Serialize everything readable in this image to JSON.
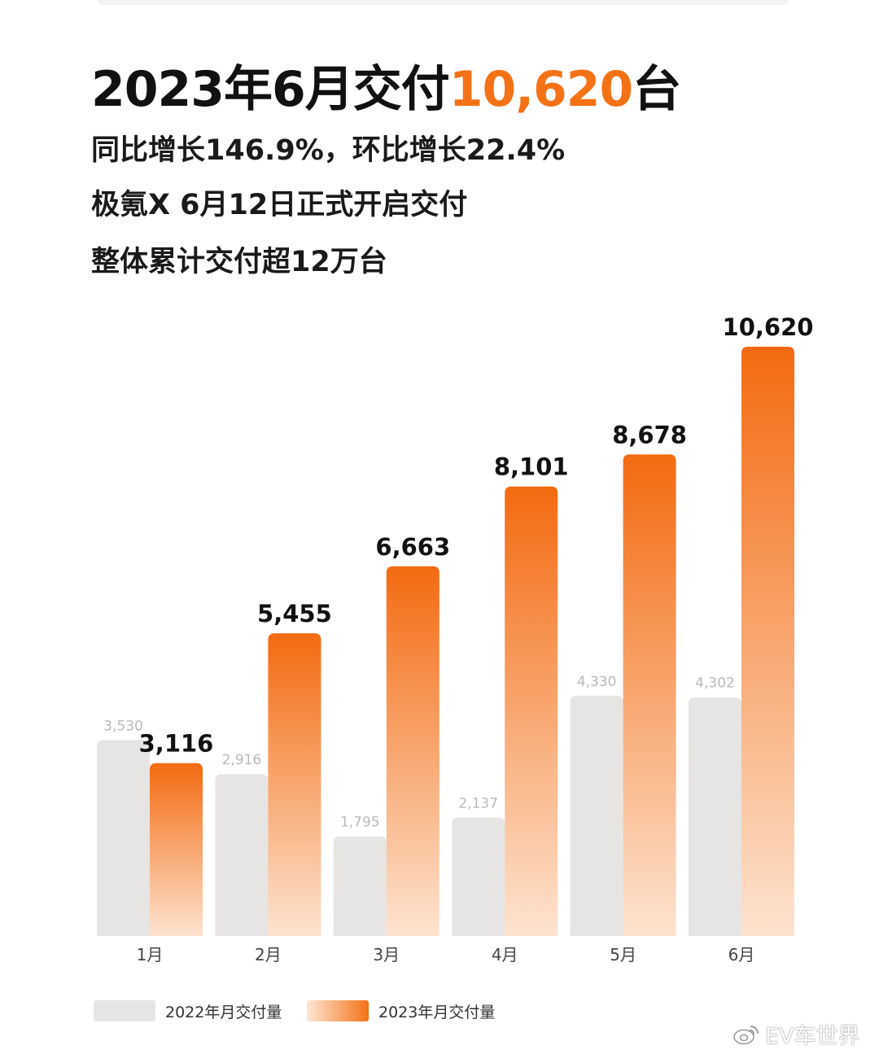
{
  "headline": {
    "prefix": "2023年6月交付",
    "highlight": "10,620",
    "suffix": "台"
  },
  "subtitles": [
    "同比增长146.9%，环比增长22.4%",
    "极氪X 6月12日正式开启交付",
    "整体累计交付超12万台"
  ],
  "colors": {
    "accent": "#f47216",
    "bar_2022": "#e6e5e3",
    "bar_2023_top": "#f36a10",
    "bar_2023_bottom": "#fde3cf"
  },
  "chart_data": {
    "type": "bar",
    "categories": [
      "1月",
      "2月",
      "3月",
      "4月",
      "5月",
      "6月"
    ],
    "series": [
      {
        "name": "2022年月交付量",
        "values": [
          3530,
          2916,
          1795,
          2137,
          4330,
          4302
        ],
        "labels": [
          "3,530",
          "2,916",
          "1,795",
          "2,137",
          "4,330",
          "4,302"
        ]
      },
      {
        "name": "2023年月交付量",
        "values": [
          3116,
          5455,
          6663,
          8101,
          8678,
          10620
        ],
        "labels": [
          "3,116",
          "5,455",
          "6,663",
          "8,101",
          "8,678",
          "10,620"
        ]
      }
    ],
    "ylim": [
      0,
      10620
    ],
    "grid": false,
    "legend_position": "bottom-left"
  },
  "legend": {
    "label_2022": "2022年月交付量",
    "label_2023": "2023年月交付量"
  },
  "watermark": {
    "text": "EV车世界",
    "icon": "weibo-icon"
  }
}
